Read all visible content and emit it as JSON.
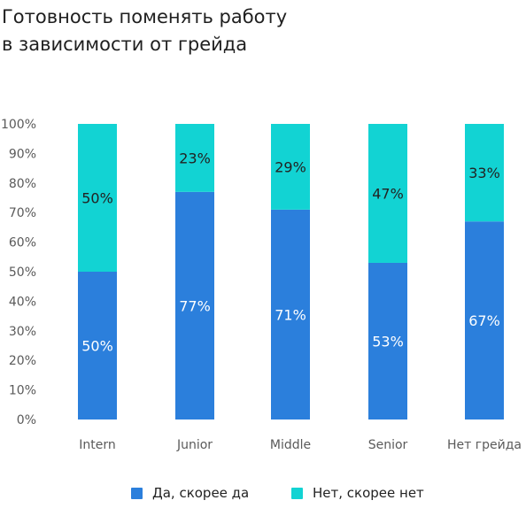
{
  "title_lines": [
    "Готовность поменять работу",
    "в зависимости от грейда"
  ],
  "colors": {
    "yes": "#2b7fdc",
    "no": "#12d3d3",
    "label_on_yes": "#ffffff",
    "label_on_no": "#222222"
  },
  "chart_data": {
    "type": "bar",
    "stacked": true,
    "categories": [
      "Intern",
      "Junior",
      "Middle",
      "Senior",
      "Нет грейда"
    ],
    "series": [
      {
        "name": "Да, скорее да",
        "values": [
          50,
          77,
          71,
          53,
          67
        ],
        "labels": [
          "50%",
          "77%",
          "71%",
          "53%",
          "67%"
        ]
      },
      {
        "name": "Нет, скорее нет",
        "values": [
          50,
          23,
          29,
          47,
          33
        ],
        "labels": [
          "50%",
          "23%",
          "29%",
          "47%",
          "33%"
        ]
      }
    ],
    "yticks": [
      "0%",
      "10%",
      "20%",
      "30%",
      "40%",
      "50%",
      "60%",
      "70%",
      "80%",
      "90%",
      "100%"
    ],
    "ylim": [
      0,
      100
    ],
    "legend_position": "bottom",
    "grid": false
  }
}
